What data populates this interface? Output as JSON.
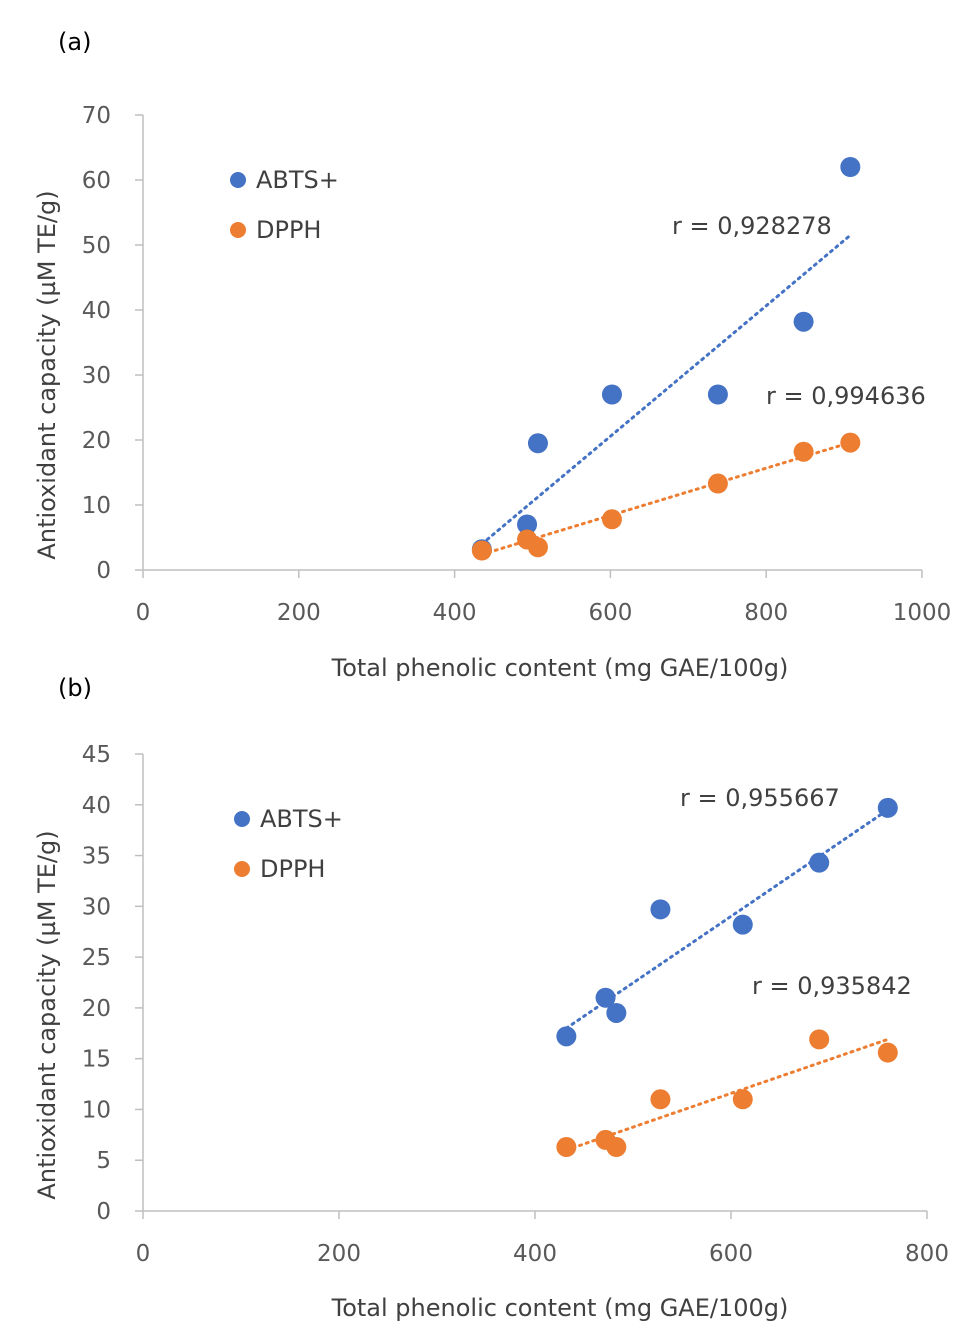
{
  "chart_data": [
    {
      "type": "scatter",
      "panel_label": "(a)",
      "xlabel": "Total phenolic content (mg GAE/100g)",
      "ylabel": "Antioxidant capacity (µM TE/g)",
      "xlim": [
        0,
        1000
      ],
      "ylim": [
        0,
        70
      ],
      "x_ticks": [
        "0",
        "200",
        "400",
        "600",
        "800",
        "1000"
      ],
      "y_ticks": [
        "0",
        "10",
        "20",
        "30",
        "40",
        "50",
        "60",
        "70"
      ],
      "legend": [
        "ABTS+",
        "DPPH"
      ],
      "series": [
        {
          "name": "ABTS+",
          "color": "#4472C4",
          "points": [
            [
              435,
              3.2
            ],
            [
              493,
              7.0
            ],
            [
              507,
              19.5
            ],
            [
              602,
              27.0
            ],
            [
              738,
              27.0
            ],
            [
              848,
              38.2
            ],
            [
              908,
              62.0
            ]
          ],
          "trendline": [
            [
              435,
              4.0
            ],
            [
              908,
              51.5
            ]
          ],
          "r_label": "r = 0,928278"
        },
        {
          "name": "DPPH",
          "color": "#ED7D31",
          "points": [
            [
              435,
              3.0
            ],
            [
              493,
              4.7
            ],
            [
              507,
              3.5
            ],
            [
              602,
              7.8
            ],
            [
              738,
              13.3
            ],
            [
              848,
              18.2
            ],
            [
              908,
              19.6
            ]
          ],
          "trendline": [
            [
              435,
              2.4
            ],
            [
              908,
              19.6
            ]
          ],
          "r_label": "r = 0,994636"
        }
      ]
    },
    {
      "type": "scatter",
      "panel_label": "(b)",
      "xlabel": "Total phenolic content (mg GAE/100g)",
      "ylabel": "Antioxidant capacity (µM TE/g)",
      "xlim": [
        0,
        800
      ],
      "ylim": [
        0,
        45
      ],
      "x_ticks": [
        "0",
        "200",
        "400",
        "600",
        "800"
      ],
      "y_ticks": [
        "0",
        "5",
        "10",
        "15",
        "20",
        "25",
        "30",
        "35",
        "40",
        "45"
      ],
      "legend": [
        "ABTS+",
        "DPPH"
      ],
      "series": [
        {
          "name": "ABTS+",
          "color": "#4472C4",
          "points": [
            [
              432,
              17.2
            ],
            [
              472,
              21.0
            ],
            [
              483,
              19.5
            ],
            [
              528,
              29.7
            ],
            [
              612,
              28.2
            ],
            [
              690,
              34.3
            ],
            [
              760,
              39.7
            ]
          ],
          "trendline": [
            [
              432,
              18.0
            ],
            [
              760,
              39.5
            ]
          ],
          "r_label": "r = 0,955667"
        },
        {
          "name": "DPPH",
          "color": "#ED7D31",
          "points": [
            [
              432,
              6.3
            ],
            [
              472,
              7.0
            ],
            [
              483,
              6.3
            ],
            [
              528,
              11.0
            ],
            [
              612,
              11.0
            ],
            [
              690,
              16.9
            ],
            [
              760,
              15.6
            ]
          ],
          "trendline": [
            [
              432,
              6.0
            ],
            [
              760,
              16.9
            ]
          ],
          "r_label": "r = 0,935842"
        }
      ]
    }
  ]
}
